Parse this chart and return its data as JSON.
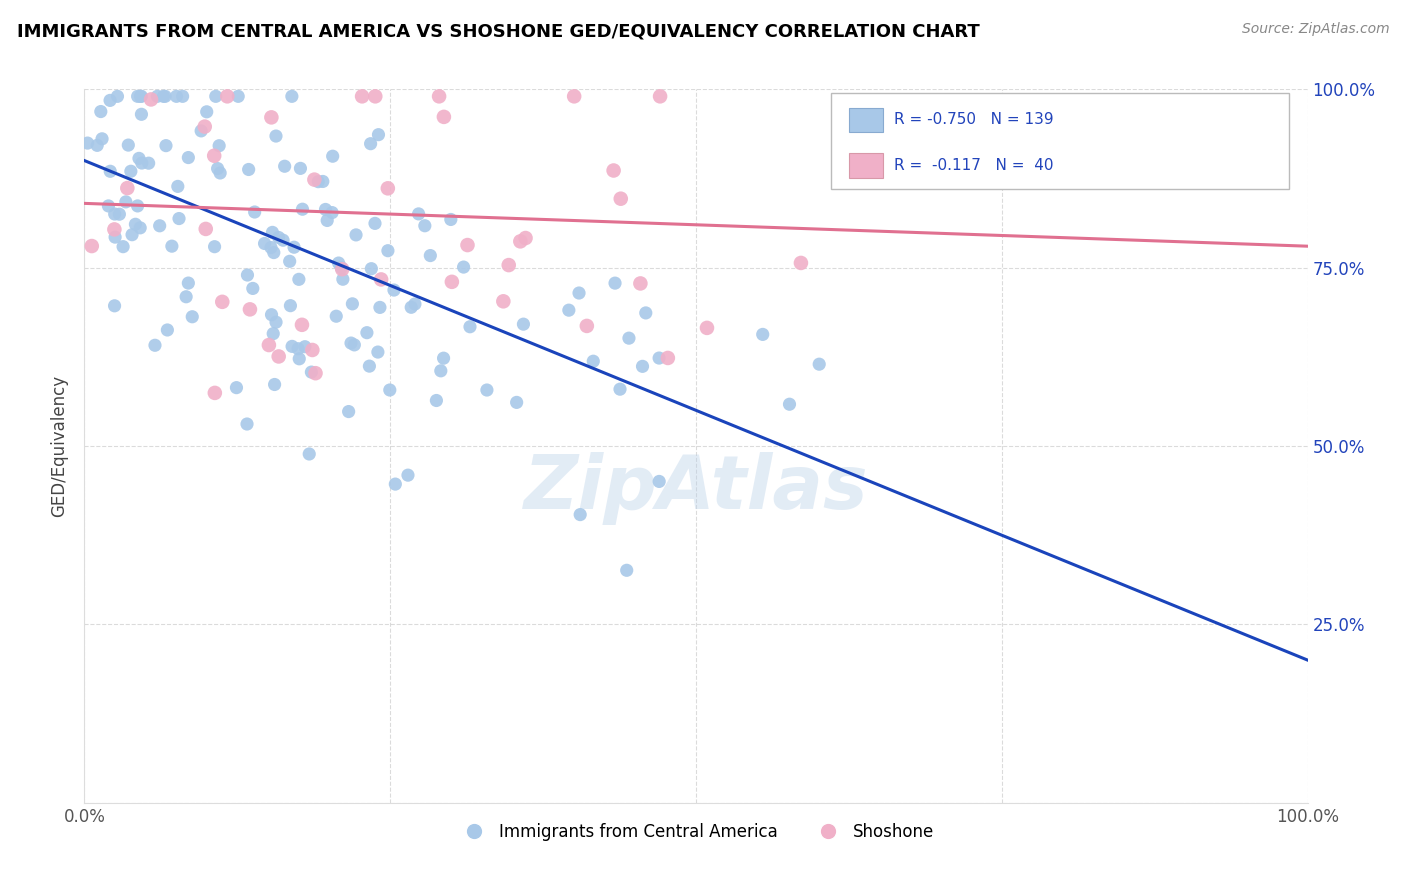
{
  "title": "IMMIGRANTS FROM CENTRAL AMERICA VS SHOSHONE GED/EQUIVALENCY CORRELATION CHART",
  "source_text": "Source: ZipAtlas.com",
  "ylabel": "GED/Equivalency",
  "xlim": [
    0,
    1
  ],
  "ylim": [
    0,
    1
  ],
  "blue_scatter_color": "#a8c8e8",
  "pink_scatter_color": "#f0b0c8",
  "blue_line_color": "#1a44bb",
  "pink_line_color": "#e07090",
  "watermark_text": "ZipAtlas",
  "watermark_color": "#b8d0e8",
  "blue_R": -0.75,
  "blue_N": 139,
  "pink_R": -0.117,
  "pink_N": 40,
  "blue_seed": 12,
  "pink_seed": 7,
  "blue_legend_label": "R = -0.750   N = 139",
  "pink_legend_label": "R =  -0.117   N =  40",
  "blue_legend_color": "#a8c8e8",
  "pink_legend_color": "#f0b0c8",
  "legend_text_color": "#2244bb"
}
